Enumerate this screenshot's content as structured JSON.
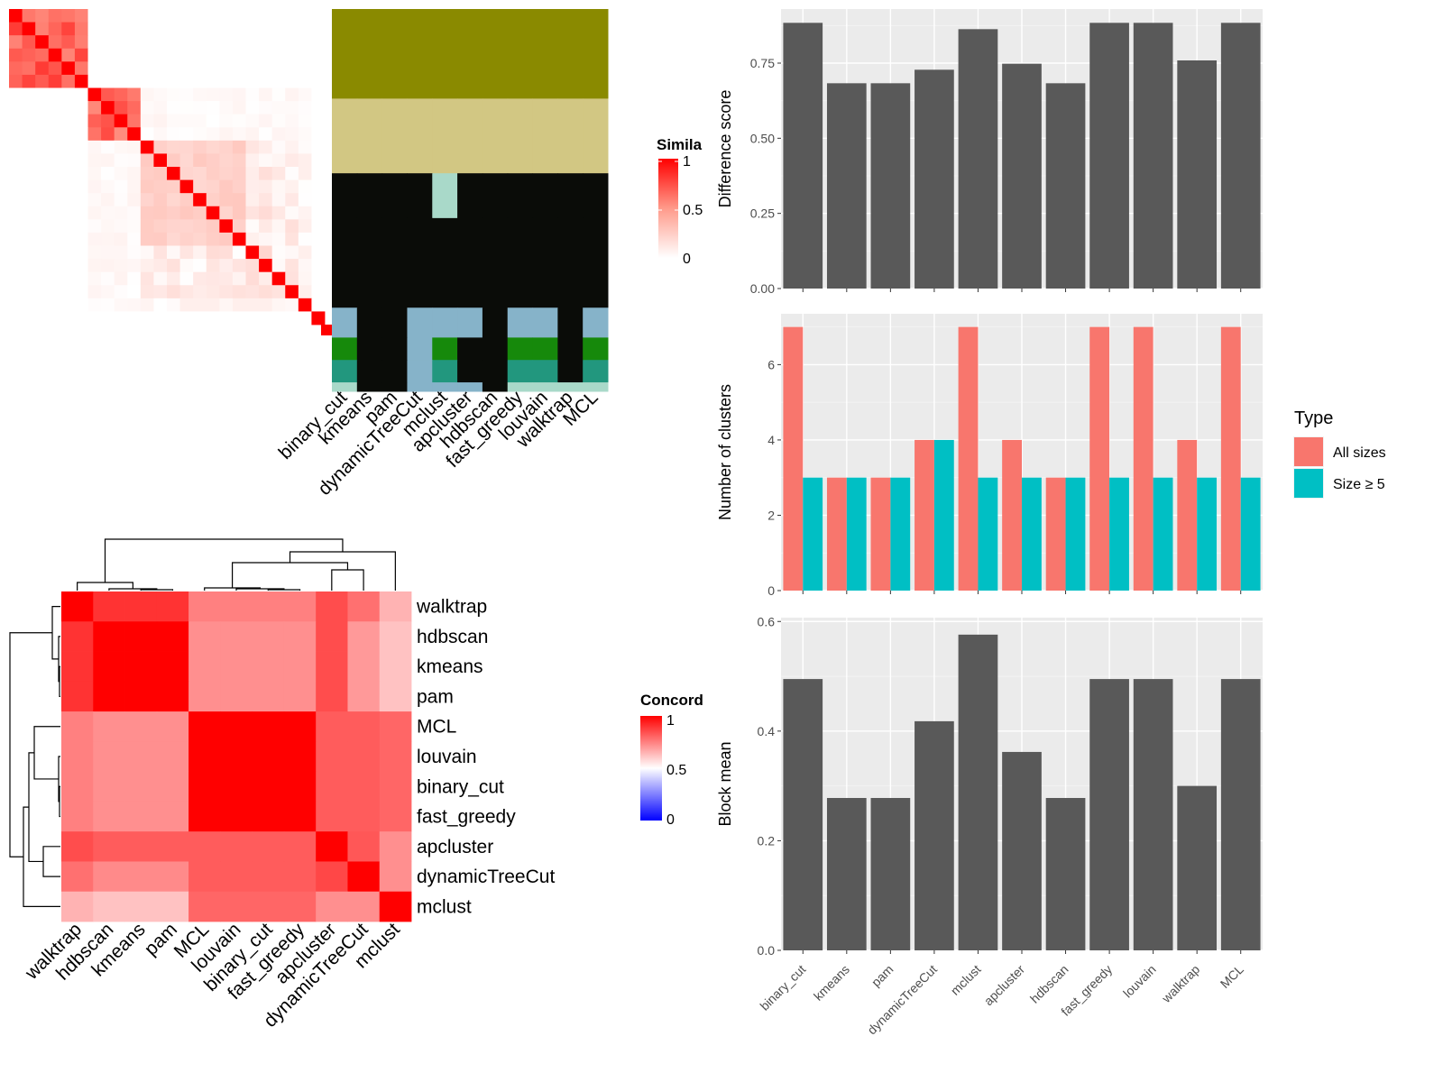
{
  "chart_data": [
    {
      "type": "heatmap",
      "panel": "similarity-heatmap",
      "legend_title": "Simila",
      "legend_ticks": [
        "1",
        "0.5",
        "0"
      ],
      "legend_colors": [
        "#ff0000",
        "#ff9a8a",
        "#ffffff"
      ],
      "diag_color": "#ff0000",
      "n_rows": 24,
      "blocks": [
        {
          "start": 0,
          "end": 6,
          "value": 0.75
        },
        {
          "start": 6,
          "end": 10,
          "value": 0.7
        },
        {
          "start": 10,
          "end": 18,
          "value": 0.25
        },
        {
          "start": 18,
          "end": 20,
          "value": 0.2
        },
        {
          "start": 20,
          "end": 22,
          "value": 0.15
        },
        {
          "start": 22,
          "end": 23,
          "value": 0.1
        }
      ]
    },
    {
      "type": "table",
      "panel": "cluster-membership-grid",
      "columns": [
        "binary_cut",
        "kmeans",
        "pam",
        "dynamicTreeCut",
        "mclust",
        "apcluster",
        "hdbscan",
        "fast_greedy",
        "louvain",
        "walktrap",
        "MCL"
      ],
      "palette": [
        "#8a8a00",
        "#d2c783",
        "#0a0c08",
        "#86b3c9",
        "#16890b",
        "#22977e",
        "#a9d9c9"
      ],
      "row_groups": [
        {
          "rows": 6,
          "classes": [
            0,
            0,
            0,
            0,
            0,
            0,
            0,
            0,
            0,
            0,
            0
          ]
        },
        {
          "rows": 5,
          "classes": [
            1,
            1,
            1,
            1,
            1,
            1,
            1,
            1,
            1,
            1,
            1
          ]
        },
        {
          "rows": 3,
          "classes": [
            2,
            2,
            2,
            2,
            6,
            2,
            2,
            2,
            2,
            2,
            2
          ]
        },
        {
          "rows": 6,
          "classes": [
            2,
            2,
            2,
            2,
            2,
            2,
            2,
            2,
            2,
            2,
            2
          ]
        },
        {
          "rows": 2,
          "classes": [
            3,
            2,
            2,
            3,
            3,
            3,
            2,
            3,
            3,
            2,
            3
          ]
        },
        {
          "rows": 1.5,
          "classes": [
            4,
            2,
            2,
            3,
            4,
            2,
            2,
            4,
            4,
            2,
            4
          ]
        },
        {
          "rows": 1.5,
          "classes": [
            5,
            2,
            2,
            3,
            5,
            2,
            2,
            5,
            5,
            2,
            5
          ]
        },
        {
          "rows": 0.6,
          "classes": [
            6,
            2,
            2,
            3,
            3,
            3,
            2,
            6,
            6,
            6,
            6
          ]
        }
      ]
    },
    {
      "type": "heatmap",
      "panel": "concordance-heatmap",
      "legend_title": "Concord",
      "legend_ticks": [
        "1",
        "0.5",
        "0"
      ],
      "legend_colors": [
        "#ff0000",
        "#ffffff",
        "#0000ff"
      ],
      "rows": [
        "walktrap",
        "hdbscan",
        "kmeans",
        "pam",
        "MCL",
        "louvain",
        "binary_cut",
        "fast_greedy",
        "apcluster",
        "dynamicTreeCut",
        "mclust"
      ],
      "columns": [
        "walktrap",
        "hdbscan",
        "kmeans",
        "pam",
        "MCL",
        "louvain",
        "binary_cut",
        "fast_greedy",
        "apcluster",
        "dynamicTreeCut",
        "mclust"
      ],
      "values": [
        [
          1.0,
          0.9,
          0.9,
          0.9,
          0.75,
          0.75,
          0.75,
          0.75,
          0.85,
          0.78,
          0.65
        ],
        [
          0.9,
          1.0,
          1.0,
          1.0,
          0.72,
          0.72,
          0.72,
          0.72,
          0.85,
          0.7,
          0.62
        ],
        [
          0.9,
          1.0,
          1.0,
          1.0,
          0.72,
          0.72,
          0.72,
          0.72,
          0.85,
          0.7,
          0.62
        ],
        [
          0.9,
          1.0,
          1.0,
          1.0,
          0.72,
          0.72,
          0.72,
          0.72,
          0.85,
          0.7,
          0.62
        ],
        [
          0.75,
          0.72,
          0.72,
          0.72,
          1.0,
          1.0,
          1.0,
          1.0,
          0.82,
          0.82,
          0.8
        ],
        [
          0.75,
          0.72,
          0.72,
          0.72,
          1.0,
          1.0,
          1.0,
          1.0,
          0.82,
          0.82,
          0.8
        ],
        [
          0.75,
          0.72,
          0.72,
          0.72,
          1.0,
          1.0,
          1.0,
          1.0,
          0.82,
          0.82,
          0.8
        ],
        [
          0.75,
          0.72,
          0.72,
          0.72,
          1.0,
          1.0,
          1.0,
          1.0,
          0.82,
          0.82,
          0.8
        ],
        [
          0.85,
          0.82,
          0.82,
          0.82,
          0.82,
          0.82,
          0.82,
          0.82,
          1.0,
          0.83,
          0.72
        ],
        [
          0.78,
          0.73,
          0.73,
          0.73,
          0.82,
          0.82,
          0.82,
          0.82,
          0.86,
          1.0,
          0.72
        ],
        [
          0.65,
          0.62,
          0.62,
          0.62,
          0.8,
          0.8,
          0.8,
          0.8,
          0.72,
          0.72,
          1.0
        ]
      ]
    },
    {
      "type": "bar",
      "panel": "difference-score",
      "categories": [
        "binary_cut",
        "kmeans",
        "pam",
        "dynamicTreeCut",
        "mclust",
        "apcluster",
        "hdbscan",
        "fast_greedy",
        "louvain",
        "walktrap",
        "MCL"
      ],
      "values": [
        0.884,
        0.683,
        0.683,
        0.728,
        0.863,
        0.748,
        0.683,
        0.884,
        0.884,
        0.759,
        0.884
      ],
      "ylabel": "Difference score",
      "ylim": [
        0,
        0.93
      ],
      "yticks": [
        "0.00",
        "0.25",
        "0.50",
        "0.75"
      ],
      "bar_color": "#595959",
      "grid": true
    },
    {
      "type": "bar",
      "panel": "number-of-clusters",
      "categories": [
        "binary_cut",
        "kmeans",
        "pam",
        "dynamicTreeCut",
        "mclust",
        "apcluster",
        "hdbscan",
        "fast_greedy",
        "louvain",
        "walktrap",
        "MCL"
      ],
      "series": [
        {
          "name": "All sizes",
          "color": "#f8766d",
          "values": [
            7,
            3,
            3,
            4,
            7,
            4,
            3,
            7,
            7,
            4,
            7
          ]
        },
        {
          "name": "Size ≥ 5",
          "color": "#00bfc4",
          "values": [
            3,
            3,
            3,
            4,
            3,
            3,
            3,
            3,
            3,
            3,
            3
          ]
        }
      ],
      "ylabel": "Number of clusters",
      "ylim": [
        0,
        7.35
      ],
      "yticks": [
        "0",
        "2",
        "4",
        "6"
      ],
      "legend_title": "Type",
      "legend_position": "right",
      "grid": true
    },
    {
      "type": "bar",
      "panel": "block-mean",
      "categories": [
        "binary_cut",
        "kmeans",
        "pam",
        "dynamicTreeCut",
        "mclust",
        "apcluster",
        "hdbscan",
        "fast_greedy",
        "louvain",
        "walktrap",
        "MCL"
      ],
      "values": [
        0.495,
        0.278,
        0.278,
        0.418,
        0.576,
        0.362,
        0.278,
        0.495,
        0.495,
        0.3,
        0.495
      ],
      "ylabel": "Block mean",
      "ylim": [
        0,
        0.607
      ],
      "yticks": [
        "0.0",
        "0.2",
        "0.4",
        "0.6"
      ],
      "bar_color": "#595959",
      "grid": true
    }
  ]
}
